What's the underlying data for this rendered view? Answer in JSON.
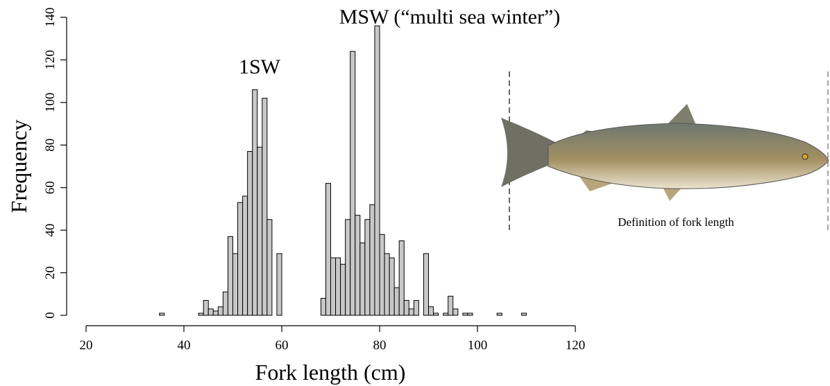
{
  "chart_data": {
    "type": "histogram",
    "title": "MSW (“multi sea winter”)",
    "annotations": [
      "1SW"
    ],
    "x_label": "Fork length (cm)",
    "y_label": "Frequency",
    "caption": "Definition of fork length",
    "bins": [
      35,
      36,
      37,
      38,
      39,
      40,
      41,
      42,
      43,
      44,
      45,
      46,
      47,
      48,
      49,
      50,
      51,
      52,
      53,
      54,
      55,
      56,
      57,
      58,
      59,
      60,
      61,
      62,
      63,
      64,
      65,
      66,
      67,
      68,
      69,
      70,
      71,
      72,
      73,
      74,
      75,
      76,
      77,
      78,
      79,
      80,
      81,
      82,
      83,
      84,
      85,
      86,
      87,
      88,
      89,
      90,
      91,
      92,
      93,
      94,
      95,
      96,
      97,
      98,
      99,
      100,
      101,
      102,
      103,
      104,
      105,
      106,
      107,
      108,
      109,
      110
    ],
    "values": [
      1,
      0,
      0,
      0,
      0,
      0,
      0,
      0,
      1,
      7,
      3,
      2,
      4,
      11,
      37,
      29,
      53,
      56,
      77,
      106,
      79,
      102,
      45,
      0,
      29,
      0,
      0,
      0,
      0,
      0,
      0,
      0,
      0,
      8,
      62,
      27,
      27,
      24,
      45,
      124,
      47,
      34,
      45,
      52,
      136,
      38,
      29,
      27,
      13,
      35,
      7,
      3,
      7,
      0,
      29,
      4,
      1,
      0,
      1,
      9,
      3,
      0,
      1,
      1,
      0,
      0,
      0,
      0,
      0,
      1,
      0,
      0,
      0,
      0,
      1
    ],
    "color": "#c8c8c8",
    "xlim": [
      20,
      120
    ],
    "xticks": [
      20,
      40,
      60,
      80,
      100,
      120
    ],
    "ylim": [
      0,
      140
    ],
    "yticks": [
      0,
      20,
      40,
      60,
      80,
      100,
      120,
      140
    ]
  }
}
